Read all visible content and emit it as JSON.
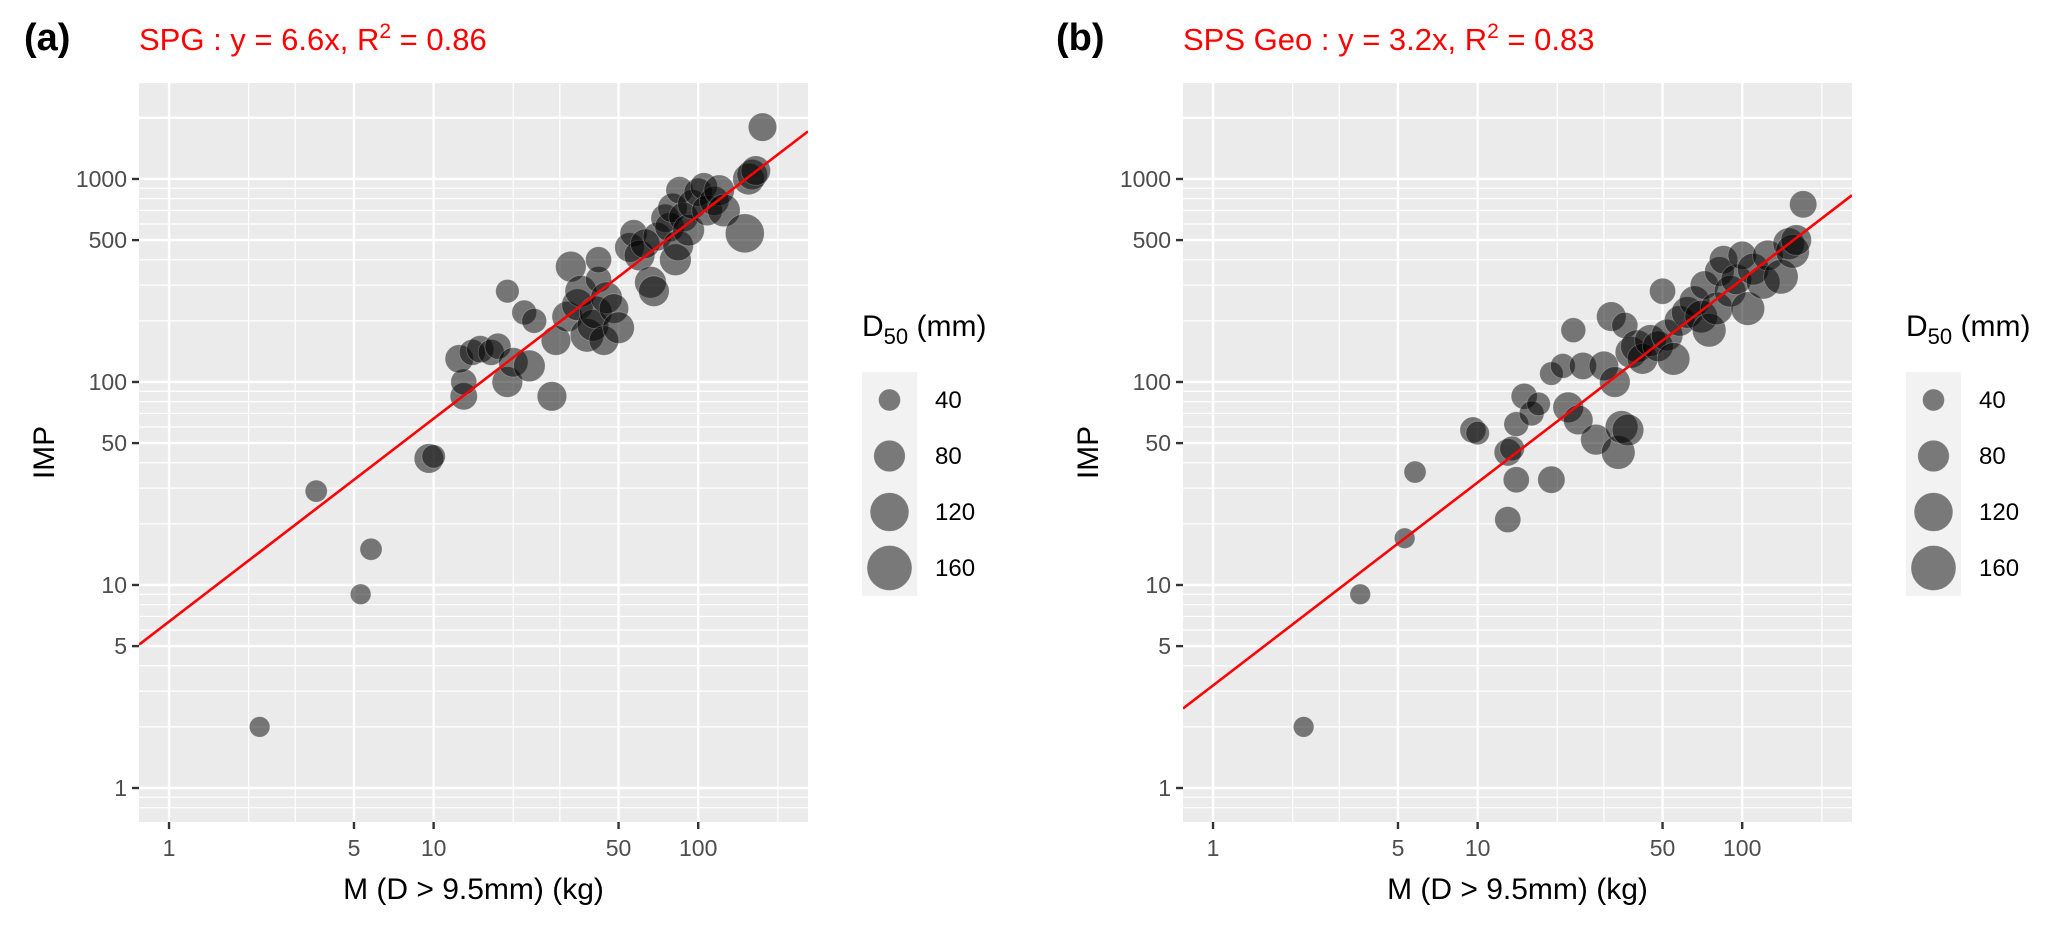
{
  "chart_data": [
    {
      "type": "scatter",
      "panel_label": "(a)",
      "title": {
        "prefix": "SPG :  y = 6.6x, R",
        "sup": "2",
        "suffix": " = 0.86"
      },
      "xlabel": "M (D > 9.5mm) (kg)",
      "ylabel": "IMP",
      "xscale": "log10",
      "yscale": "log10",
      "xlim": [
        0.77,
        260
      ],
      "ylim": [
        0.68,
        2970
      ],
      "xticks": [
        1,
        5,
        10,
        50,
        100
      ],
      "xtick_labels": [
        "1",
        "5",
        "10",
        "50",
        "100"
      ],
      "yticks": [
        1,
        5,
        10,
        50,
        100,
        500,
        1000
      ],
      "ytick_labels": [
        "1",
        "5",
        "10",
        "50",
        "100",
        "500",
        "1000"
      ],
      "grid": true,
      "fit_line": {
        "slope": 6.6,
        "color": "#ff0000"
      },
      "legend": {
        "title_main": "D",
        "title_sub": "50",
        "title_suffix": " (mm)",
        "placement": "right",
        "sizes": [
          40,
          80,
          120,
          160
        ],
        "labels": [
          "40",
          "80",
          "120",
          "160"
        ]
      },
      "point_color": "#000000",
      "point_alpha": 0.5,
      "points": [
        {
          "x": 2.2,
          "y": 2,
          "d50": 35
        },
        {
          "x": 5.3,
          "y": 9,
          "d50": 35
        },
        {
          "x": 5.8,
          "y": 15,
          "d50": 40
        },
        {
          "x": 3.6,
          "y": 29,
          "d50": 40
        },
        {
          "x": 9.6,
          "y": 42,
          "d50": 70
        },
        {
          "x": 10,
          "y": 43,
          "d50": 45
        },
        {
          "x": 13,
          "y": 85,
          "d50": 60
        },
        {
          "x": 13,
          "y": 100,
          "d50": 55
        },
        {
          "x": 12.5,
          "y": 130,
          "d50": 65
        },
        {
          "x": 14,
          "y": 140,
          "d50": 55
        },
        {
          "x": 15,
          "y": 145,
          "d50": 60
        },
        {
          "x": 16.5,
          "y": 140,
          "d50": 55
        },
        {
          "x": 17.5,
          "y": 150,
          "d50": 55
        },
        {
          "x": 19,
          "y": 100,
          "d50": 75
        },
        {
          "x": 20,
          "y": 125,
          "d50": 70
        },
        {
          "x": 19,
          "y": 280,
          "d50": 45
        },
        {
          "x": 22,
          "y": 220,
          "d50": 50
        },
        {
          "x": 24,
          "y": 200,
          "d50": 50
        },
        {
          "x": 23,
          "y": 120,
          "d50": 80
        },
        {
          "x": 28,
          "y": 85,
          "d50": 70
        },
        {
          "x": 29,
          "y": 160,
          "d50": 70
        },
        {
          "x": 32,
          "y": 210,
          "d50": 75
        },
        {
          "x": 33,
          "y": 370,
          "d50": 75
        },
        {
          "x": 35,
          "y": 240,
          "d50": 80
        },
        {
          "x": 36,
          "y": 280,
          "d50": 80
        },
        {
          "x": 38,
          "y": 170,
          "d50": 90
        },
        {
          "x": 40,
          "y": 190,
          "d50": 80
        },
        {
          "x": 41,
          "y": 220,
          "d50": 85
        },
        {
          "x": 42,
          "y": 320,
          "d50": 55
        },
        {
          "x": 42,
          "y": 400,
          "d50": 55
        },
        {
          "x": 44,
          "y": 160,
          "d50": 70
        },
        {
          "x": 45,
          "y": 260,
          "d50": 80
        },
        {
          "x": 48,
          "y": 230,
          "d50": 70
        },
        {
          "x": 50,
          "y": 185,
          "d50": 80
        },
        {
          "x": 55,
          "y": 460,
          "d50": 70
        },
        {
          "x": 57,
          "y": 540,
          "d50": 60
        },
        {
          "x": 60,
          "y": 420,
          "d50": 75
        },
        {
          "x": 63,
          "y": 480,
          "d50": 70
        },
        {
          "x": 66,
          "y": 310,
          "d50": 80
        },
        {
          "x": 68,
          "y": 280,
          "d50": 75
        },
        {
          "x": 70,
          "y": 520,
          "d50": 65
        },
        {
          "x": 75,
          "y": 640,
          "d50": 65
        },
        {
          "x": 78,
          "y": 580,
          "d50": 70
        },
        {
          "x": 80,
          "y": 720,
          "d50": 70
        },
        {
          "x": 82,
          "y": 400,
          "d50": 80
        },
        {
          "x": 84,
          "y": 470,
          "d50": 75
        },
        {
          "x": 85,
          "y": 880,
          "d50": 60
        },
        {
          "x": 88,
          "y": 650,
          "d50": 70
        },
        {
          "x": 92,
          "y": 560,
          "d50": 80
        },
        {
          "x": 95,
          "y": 750,
          "d50": 70
        },
        {
          "x": 100,
          "y": 860,
          "d50": 65
        },
        {
          "x": 105,
          "y": 920,
          "d50": 60
        },
        {
          "x": 108,
          "y": 700,
          "d50": 75
        },
        {
          "x": 115,
          "y": 780,
          "d50": 70
        },
        {
          "x": 120,
          "y": 880,
          "d50": 75
        },
        {
          "x": 125,
          "y": 700,
          "d50": 85
        },
        {
          "x": 150,
          "y": 540,
          "d50": 120
        },
        {
          "x": 155,
          "y": 1000,
          "d50": 80
        },
        {
          "x": 160,
          "y": 1050,
          "d50": 75
        },
        {
          "x": 165,
          "y": 1100,
          "d50": 70
        },
        {
          "x": 175,
          "y": 1800,
          "d50": 65
        }
      ]
    },
    {
      "type": "scatter",
      "panel_label": "(b)",
      "title": {
        "prefix": "SPS Geo :  y = 3.2x, R",
        "sup": "2",
        "suffix": " = 0.83"
      },
      "xlabel": "M (D > 9.5mm) (kg)",
      "ylabel": "IMP",
      "xscale": "log10",
      "yscale": "log10",
      "xlim": [
        0.77,
        260
      ],
      "ylim": [
        0.68,
        2970
      ],
      "xticks": [
        1,
        5,
        10,
        50,
        100
      ],
      "xtick_labels": [
        "1",
        "5",
        "10",
        "50",
        "100"
      ],
      "yticks": [
        1,
        5,
        10,
        50,
        100,
        500,
        1000
      ],
      "ytick_labels": [
        "1",
        "5",
        "10",
        "50",
        "100",
        "500",
        "1000"
      ],
      "grid": true,
      "fit_line": {
        "slope": 3.2,
        "color": "#ff0000"
      },
      "legend": {
        "title_main": "D",
        "title_sub": "50",
        "title_suffix": " (mm)",
        "placement": "right",
        "sizes": [
          40,
          80,
          120,
          160
        ],
        "labels": [
          "40",
          "80",
          "120",
          "160"
        ]
      },
      "point_color": "#000000",
      "point_alpha": 0.5,
      "points": [
        {
          "x": 2.2,
          "y": 2,
          "d50": 35
        },
        {
          "x": 3.6,
          "y": 9,
          "d50": 35
        },
        {
          "x": 5.3,
          "y": 17,
          "d50": 35
        },
        {
          "x": 5.8,
          "y": 36,
          "d50": 40
        },
        {
          "x": 9.6,
          "y": 58,
          "d50": 55
        },
        {
          "x": 10,
          "y": 56,
          "d50": 45
        },
        {
          "x": 13,
          "y": 21,
          "d50": 55
        },
        {
          "x": 13,
          "y": 45,
          "d50": 60
        },
        {
          "x": 13.5,
          "y": 47,
          "d50": 50
        },
        {
          "x": 14,
          "y": 33,
          "d50": 55
        },
        {
          "x": 14,
          "y": 62,
          "d50": 50
        },
        {
          "x": 15,
          "y": 85,
          "d50": 55
        },
        {
          "x": 16,
          "y": 70,
          "d50": 50
        },
        {
          "x": 17,
          "y": 78,
          "d50": 45
        },
        {
          "x": 19,
          "y": 33,
          "d50": 60
        },
        {
          "x": 19,
          "y": 110,
          "d50": 45
        },
        {
          "x": 21,
          "y": 120,
          "d50": 50
        },
        {
          "x": 22,
          "y": 75,
          "d50": 75
        },
        {
          "x": 23,
          "y": 180,
          "d50": 50
        },
        {
          "x": 24,
          "y": 65,
          "d50": 70
        },
        {
          "x": 25,
          "y": 120,
          "d50": 60
        },
        {
          "x": 28,
          "y": 52,
          "d50": 75
        },
        {
          "x": 30,
          "y": 120,
          "d50": 70
        },
        {
          "x": 32,
          "y": 210,
          "d50": 70
        },
        {
          "x": 33,
          "y": 100,
          "d50": 75
        },
        {
          "x": 34,
          "y": 45,
          "d50": 90
        },
        {
          "x": 35,
          "y": 60,
          "d50": 85
        },
        {
          "x": 36,
          "y": 190,
          "d50": 55
        },
        {
          "x": 37,
          "y": 58,
          "d50": 80
        },
        {
          "x": 38,
          "y": 140,
          "d50": 80
        },
        {
          "x": 40,
          "y": 150,
          "d50": 85
        },
        {
          "x": 42,
          "y": 130,
          "d50": 75
        },
        {
          "x": 45,
          "y": 160,
          "d50": 80
        },
        {
          "x": 48,
          "y": 150,
          "d50": 75
        },
        {
          "x": 50,
          "y": 280,
          "d50": 55
        },
        {
          "x": 52,
          "y": 170,
          "d50": 80
        },
        {
          "x": 55,
          "y": 130,
          "d50": 85
        },
        {
          "x": 58,
          "y": 200,
          "d50": 75
        },
        {
          "x": 62,
          "y": 220,
          "d50": 80
        },
        {
          "x": 66,
          "y": 250,
          "d50": 75
        },
        {
          "x": 70,
          "y": 210,
          "d50": 85
        },
        {
          "x": 72,
          "y": 300,
          "d50": 65
        },
        {
          "x": 75,
          "y": 180,
          "d50": 90
        },
        {
          "x": 80,
          "y": 230,
          "d50": 85
        },
        {
          "x": 82,
          "y": 350,
          "d50": 70
        },
        {
          "x": 85,
          "y": 400,
          "d50": 65
        },
        {
          "x": 90,
          "y": 280,
          "d50": 80
        },
        {
          "x": 95,
          "y": 320,
          "d50": 75
        },
        {
          "x": 100,
          "y": 420,
          "d50": 65
        },
        {
          "x": 105,
          "y": 230,
          "d50": 90
        },
        {
          "x": 110,
          "y": 360,
          "d50": 80
        },
        {
          "x": 120,
          "y": 310,
          "d50": 90
        },
        {
          "x": 125,
          "y": 420,
          "d50": 75
        },
        {
          "x": 140,
          "y": 330,
          "d50": 95
        },
        {
          "x": 150,
          "y": 480,
          "d50": 80
        },
        {
          "x": 155,
          "y": 440,
          "d50": 90
        },
        {
          "x": 160,
          "y": 500,
          "d50": 75
        },
        {
          "x": 170,
          "y": 750,
          "d50": 60
        }
      ]
    }
  ]
}
